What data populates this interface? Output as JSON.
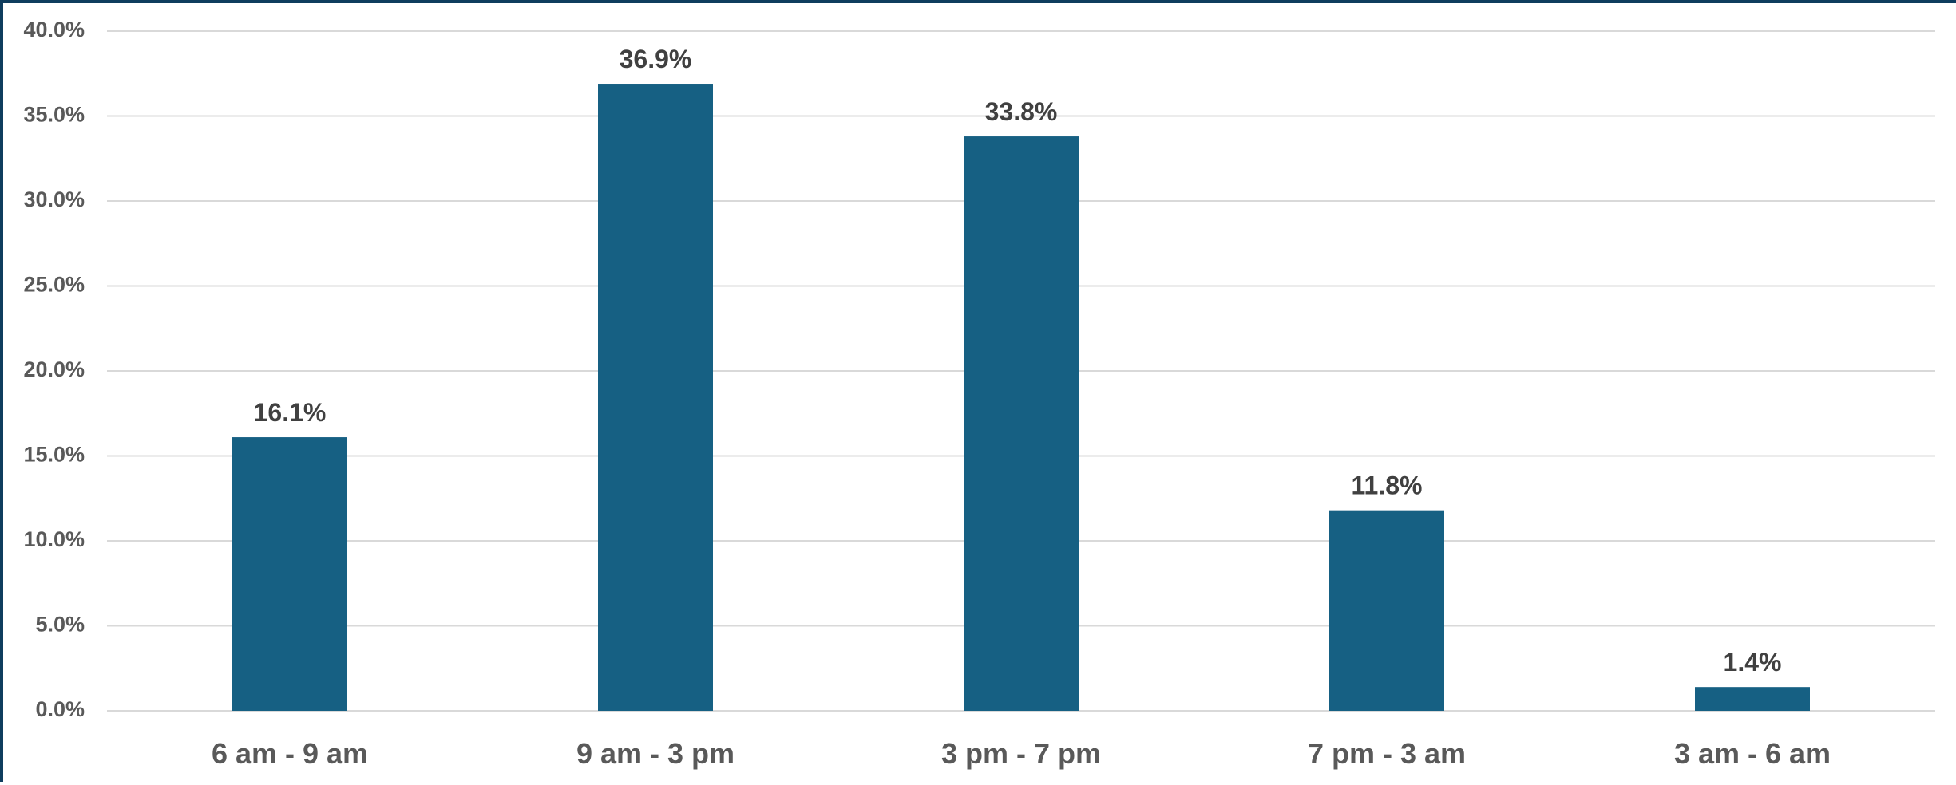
{
  "chart_data": {
    "type": "bar",
    "title": "",
    "xlabel": "",
    "ylabel": "",
    "categories": [
      "6 am - 9 am",
      "9 am - 3 pm",
      "3 pm - 7 pm",
      "7 pm - 3 am",
      "3 am - 6 am"
    ],
    "values": [
      16.1,
      36.9,
      33.8,
      11.8,
      1.4
    ],
    "data_labels": [
      "16.1%",
      "36.9%",
      "33.8%",
      "11.8%",
      "1.4%"
    ],
    "ylim": [
      0,
      40
    ],
    "yticks": [
      0,
      5,
      10,
      15,
      20,
      25,
      30,
      35,
      40
    ],
    "ytick_labels": [
      "0.0%",
      "5.0%",
      "10.0%",
      "15.0%",
      "20.0%",
      "25.0%",
      "30.0%",
      "35.0%",
      "40.0%"
    ],
    "grid": true,
    "legend": "none",
    "colors": {
      "bar": "#166083",
      "grid": "#d9d9d9",
      "border": "#0f3d5e"
    }
  }
}
